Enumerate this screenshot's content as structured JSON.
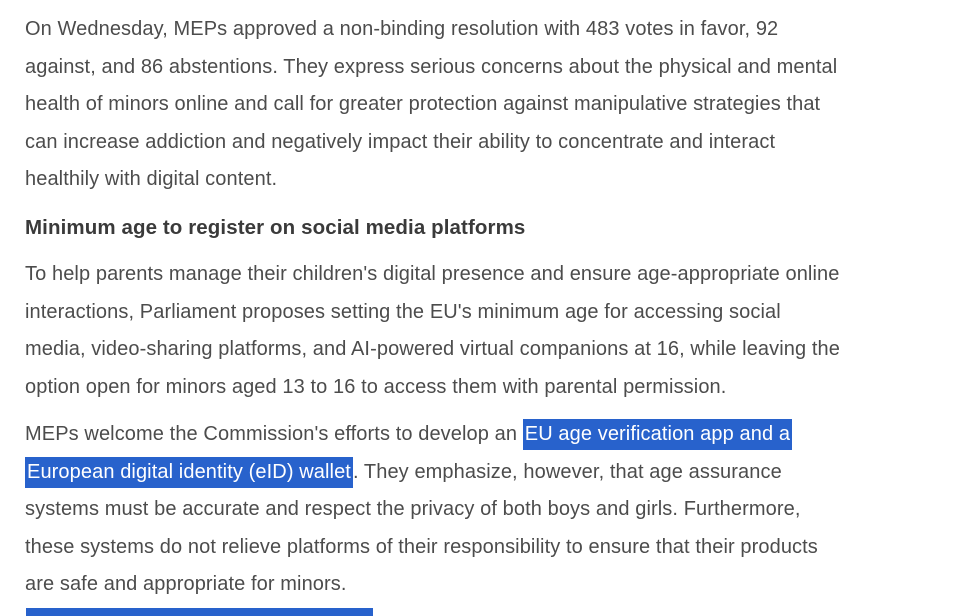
{
  "colors": {
    "background": "#ffffff",
    "body_text": "#4c4c4c",
    "heading_text": "#3a3a3a",
    "selection_background": "#2862cc",
    "selection_text": "#ffffff",
    "bottom_bar": "#2862cc"
  },
  "article": {
    "p1_lines": [
      "On Wednesday, MEPs approved a non-binding resolution with 483 votes in favor, 92",
      "against, and 86 abstentions. They express serious concerns about the physical and mental",
      "health of minors online and call for greater protection against manipulative strategies that",
      "can increase addiction and negatively impact their ability to concentrate and interact",
      "healthily with digital content."
    ],
    "heading": "Minimum age to register on social media platforms",
    "p2_lines": [
      "To help parents manage their children's digital presence and ensure age-appropriate online",
      "interactions, Parliament proposes setting the EU's minimum age for accessing social",
      "media, video-sharing platforms, and AI-powered virtual companions at 16, while leaving the",
      "option open for minors aged 13 to 16 to access them with parental permission."
    ],
    "p3_lines": [
      [
        {
          "text": "MEPs welcome the Commission's efforts to develop an ",
          "selected": false
        },
        {
          "text": "EU age verification app and a",
          "selected": true
        }
      ],
      [
        {
          "text": "European digital identity (eID) wallet",
          "selected": true
        },
        {
          "text": ". They emphasize, however, that age assurance",
          "selected": false
        }
      ],
      [
        {
          "text": "systems must be accurate and respect the privacy of both boys and girls. Furthermore,",
          "selected": false
        }
      ],
      [
        {
          "text": "these systems do not relieve platforms of their responsibility to ensure that their products",
          "selected": false
        }
      ],
      [
        {
          "text": "are safe and appropriate for minors.",
          "selected": false
        }
      ]
    ],
    "selected_text": "EU age verification app and a European digital identity (eID) wallet"
  }
}
